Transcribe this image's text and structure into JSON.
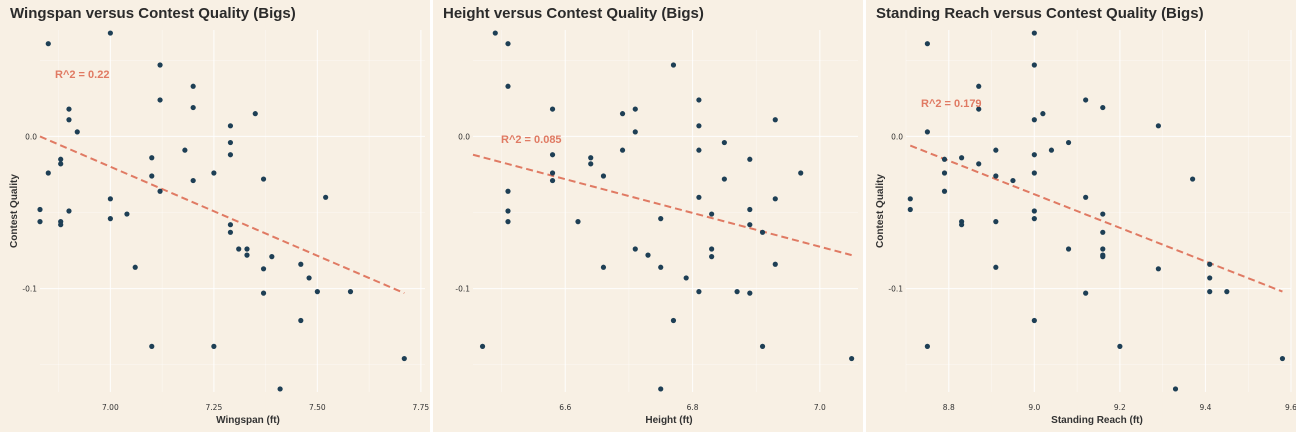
{
  "colors": {
    "background": "#f8f0e4",
    "point": "#1e3f55",
    "trend": "#e07a63"
  },
  "chart_data": [
    {
      "type": "scatter",
      "title": "Wingspan versus Contest Quality (Bigs)",
      "xlabel": "Wingspan (ft)",
      "ylabel": "Contest Quality",
      "annotation": "R^2 = 0.22",
      "xlim": [
        6.83,
        7.76
      ],
      "ylim": [
        -0.168,
        0.07
      ],
      "xticks": [
        {
          "value": 7.0,
          "label": "7.00"
        },
        {
          "value": 7.25,
          "label": "7.25"
        },
        {
          "value": 7.5,
          "label": "7.50"
        },
        {
          "value": 7.75,
          "label": "7.75"
        }
      ],
      "yticks": [
        {
          "value": 0.0,
          "label": "0.0"
        },
        {
          "value": -0.1,
          "label": "-0.1"
        }
      ],
      "grid": true,
      "legend": "none",
      "trendline": {
        "x": [
          6.83,
          7.71
        ],
        "y": [
          0.0,
          -0.103
        ]
      },
      "points": [
        {
          "x": 6.83,
          "y": -0.048
        },
        {
          "x": 6.83,
          "y": -0.056
        },
        {
          "x": 6.85,
          "y": 0.061
        },
        {
          "x": 6.85,
          "y": -0.024
        },
        {
          "x": 6.88,
          "y": -0.015
        },
        {
          "x": 6.88,
          "y": -0.018
        },
        {
          "x": 6.88,
          "y": -0.056
        },
        {
          "x": 6.88,
          "y": -0.058
        },
        {
          "x": 6.9,
          "y": 0.018
        },
        {
          "x": 6.9,
          "y": 0.011
        },
        {
          "x": 6.9,
          "y": -0.049
        },
        {
          "x": 6.92,
          "y": 0.003
        },
        {
          "x": 7.0,
          "y": 0.068
        },
        {
          "x": 7.0,
          "y": -0.041
        },
        {
          "x": 7.0,
          "y": -0.054
        },
        {
          "x": 7.04,
          "y": -0.051
        },
        {
          "x": 7.06,
          "y": -0.086
        },
        {
          "x": 7.1,
          "y": -0.014
        },
        {
          "x": 7.1,
          "y": -0.026
        },
        {
          "x": 7.1,
          "y": -0.138
        },
        {
          "x": 7.12,
          "y": 0.047
        },
        {
          "x": 7.12,
          "y": 0.024
        },
        {
          "x": 7.12,
          "y": -0.036
        },
        {
          "x": 7.18,
          "y": -0.009
        },
        {
          "x": 7.2,
          "y": 0.033
        },
        {
          "x": 7.2,
          "y": 0.019
        },
        {
          "x": 7.2,
          "y": -0.029
        },
        {
          "x": 7.25,
          "y": -0.024
        },
        {
          "x": 7.25,
          "y": -0.138
        },
        {
          "x": 7.29,
          "y": 0.007
        },
        {
          "x": 7.29,
          "y": -0.004
        },
        {
          "x": 7.29,
          "y": -0.012
        },
        {
          "x": 7.29,
          "y": -0.058
        },
        {
          "x": 7.29,
          "y": -0.063
        },
        {
          "x": 7.31,
          "y": -0.074
        },
        {
          "x": 7.33,
          "y": -0.074
        },
        {
          "x": 7.33,
          "y": -0.078
        },
        {
          "x": 7.35,
          "y": 0.015
        },
        {
          "x": 7.37,
          "y": -0.028
        },
        {
          "x": 7.37,
          "y": -0.087
        },
        {
          "x": 7.37,
          "y": -0.103
        },
        {
          "x": 7.39,
          "y": -0.079
        },
        {
          "x": 7.41,
          "y": -0.166
        },
        {
          "x": 7.46,
          "y": -0.084
        },
        {
          "x": 7.46,
          "y": -0.121
        },
        {
          "x": 7.48,
          "y": -0.093
        },
        {
          "x": 7.5,
          "y": -0.102
        },
        {
          "x": 7.52,
          "y": -0.04
        },
        {
          "x": 7.58,
          "y": -0.102
        },
        {
          "x": 7.71,
          "y": -0.146
        }
      ]
    },
    {
      "type": "scatter",
      "title": "Height versus Contest Quality (Bigs)",
      "xlabel": "Height (ft)",
      "ylabel": "",
      "annotation": "R^2 = 0.085",
      "xlim": [
        6.455,
        7.06
      ],
      "ylim": [
        -0.168,
        0.07
      ],
      "xticks": [
        {
          "value": 6.6,
          "label": "6.6"
        },
        {
          "value": 6.8,
          "label": "6.8"
        },
        {
          "value": 7.0,
          "label": "7.0"
        }
      ],
      "yticks": [
        {
          "value": 0.0,
          "label": "0.0"
        },
        {
          "value": -0.1,
          "label": "-0.1"
        }
      ],
      "grid": true,
      "legend": "none",
      "trendline": {
        "x": [
          6.455,
          7.05
        ],
        "y": [
          -0.012,
          -0.078
        ]
      },
      "points": [
        {
          "x": 6.47,
          "y": -0.138
        },
        {
          "x": 6.49,
          "y": 0.068
        },
        {
          "x": 6.51,
          "y": 0.061
        },
        {
          "x": 6.51,
          "y": 0.033
        },
        {
          "x": 6.51,
          "y": -0.036
        },
        {
          "x": 6.51,
          "y": -0.049
        },
        {
          "x": 6.51,
          "y": -0.056
        },
        {
          "x": 6.58,
          "y": 0.018
        },
        {
          "x": 6.58,
          "y": -0.012
        },
        {
          "x": 6.58,
          "y": -0.024
        },
        {
          "x": 6.58,
          "y": -0.029
        },
        {
          "x": 6.62,
          "y": -0.056
        },
        {
          "x": 6.64,
          "y": -0.014
        },
        {
          "x": 6.64,
          "y": -0.018
        },
        {
          "x": 6.66,
          "y": -0.026
        },
        {
          "x": 6.66,
          "y": -0.086
        },
        {
          "x": 6.69,
          "y": 0.015
        },
        {
          "x": 6.69,
          "y": -0.009
        },
        {
          "x": 6.71,
          "y": 0.018
        },
        {
          "x": 6.71,
          "y": 0.003
        },
        {
          "x": 6.71,
          "y": -0.074
        },
        {
          "x": 6.73,
          "y": -0.078
        },
        {
          "x": 6.75,
          "y": -0.054
        },
        {
          "x": 6.75,
          "y": -0.086
        },
        {
          "x": 6.75,
          "y": -0.166
        },
        {
          "x": 6.77,
          "y": 0.047
        },
        {
          "x": 6.77,
          "y": -0.121
        },
        {
          "x": 6.79,
          "y": -0.093
        },
        {
          "x": 6.81,
          "y": 0.024
        },
        {
          "x": 6.81,
          "y": 0.007
        },
        {
          "x": 6.81,
          "y": -0.009
        },
        {
          "x": 6.81,
          "y": -0.04
        },
        {
          "x": 6.81,
          "y": -0.102
        },
        {
          "x": 6.83,
          "y": -0.051
        },
        {
          "x": 6.83,
          "y": -0.074
        },
        {
          "x": 6.83,
          "y": -0.079
        },
        {
          "x": 6.85,
          "y": -0.004
        },
        {
          "x": 6.85,
          "y": -0.028
        },
        {
          "x": 6.87,
          "y": -0.102
        },
        {
          "x": 6.89,
          "y": -0.015
        },
        {
          "x": 6.89,
          "y": -0.048
        },
        {
          "x": 6.89,
          "y": -0.058
        },
        {
          "x": 6.89,
          "y": -0.103
        },
        {
          "x": 6.91,
          "y": -0.063
        },
        {
          "x": 6.91,
          "y": -0.138
        },
        {
          "x": 6.93,
          "y": 0.011
        },
        {
          "x": 6.93,
          "y": -0.041
        },
        {
          "x": 6.93,
          "y": -0.084
        },
        {
          "x": 6.97,
          "y": -0.024
        },
        {
          "x": 7.05,
          "y": -0.146
        }
      ]
    },
    {
      "type": "scatter",
      "title": "Standing Reach versus Contest Quality (Bigs)",
      "xlabel": "Standing Reach (ft)",
      "ylabel": "Contest Quality",
      "annotation": "R^2 = 0.179",
      "xlim": [
        8.7,
        9.6
      ],
      "ylim": [
        -0.168,
        0.07
      ],
      "xticks": [
        {
          "value": 8.8,
          "label": "8.8"
        },
        {
          "value": 9.0,
          "label": "9.0"
        },
        {
          "value": 9.2,
          "label": "9.2"
        },
        {
          "value": 9.4,
          "label": "9.4"
        },
        {
          "value": 9.6,
          "label": "9.6"
        }
      ],
      "yticks": [
        {
          "value": 0.0,
          "label": "0.0"
        },
        {
          "value": -0.1,
          "label": "-0.1"
        }
      ],
      "grid": true,
      "legend": "none",
      "trendline": {
        "x": [
          8.71,
          9.58
        ],
        "y": [
          -0.006,
          -0.102
        ]
      },
      "points": [
        {
          "x": 8.71,
          "y": -0.041
        },
        {
          "x": 8.71,
          "y": -0.048
        },
        {
          "x": 8.75,
          "y": 0.061
        },
        {
          "x": 8.75,
          "y": 0.003
        },
        {
          "x": 8.75,
          "y": -0.138
        },
        {
          "x": 8.79,
          "y": -0.015
        },
        {
          "x": 8.79,
          "y": -0.024
        },
        {
          "x": 8.79,
          "y": -0.036
        },
        {
          "x": 8.83,
          "y": -0.014
        },
        {
          "x": 8.83,
          "y": -0.056
        },
        {
          "x": 8.83,
          "y": -0.058
        },
        {
          "x": 8.87,
          "y": 0.033
        },
        {
          "x": 8.87,
          "y": 0.018
        },
        {
          "x": 8.87,
          "y": -0.018
        },
        {
          "x": 8.91,
          "y": -0.009
        },
        {
          "x": 8.91,
          "y": -0.026
        },
        {
          "x": 8.91,
          "y": -0.056
        },
        {
          "x": 8.91,
          "y": -0.086
        },
        {
          "x": 8.95,
          "y": -0.029
        },
        {
          "x": 9.0,
          "y": 0.068
        },
        {
          "x": 9.0,
          "y": 0.047
        },
        {
          "x": 9.0,
          "y": 0.011
        },
        {
          "x": 9.0,
          "y": -0.012
        },
        {
          "x": 9.0,
          "y": -0.024
        },
        {
          "x": 9.0,
          "y": -0.049
        },
        {
          "x": 9.0,
          "y": -0.054
        },
        {
          "x": 9.0,
          "y": -0.121
        },
        {
          "x": 9.02,
          "y": 0.015
        },
        {
          "x": 9.04,
          "y": -0.009
        },
        {
          "x": 9.08,
          "y": -0.004
        },
        {
          "x": 9.08,
          "y": -0.074
        },
        {
          "x": 9.12,
          "y": 0.024
        },
        {
          "x": 9.12,
          "y": -0.04
        },
        {
          "x": 9.12,
          "y": -0.103
        },
        {
          "x": 9.16,
          "y": 0.019
        },
        {
          "x": 9.16,
          "y": -0.051
        },
        {
          "x": 9.16,
          "y": -0.063
        },
        {
          "x": 9.16,
          "y": -0.074
        },
        {
          "x": 9.16,
          "y": -0.078
        },
        {
          "x": 9.16,
          "y": -0.079
        },
        {
          "x": 9.2,
          "y": -0.138
        },
        {
          "x": 9.29,
          "y": 0.007
        },
        {
          "x": 9.29,
          "y": -0.087
        },
        {
          "x": 9.33,
          "y": -0.166
        },
        {
          "x": 9.37,
          "y": -0.028
        },
        {
          "x": 9.41,
          "y": -0.084
        },
        {
          "x": 9.41,
          "y": -0.093
        },
        {
          "x": 9.41,
          "y": -0.102
        },
        {
          "x": 9.45,
          "y": -0.102
        },
        {
          "x": 9.58,
          "y": -0.146
        }
      ]
    }
  ]
}
